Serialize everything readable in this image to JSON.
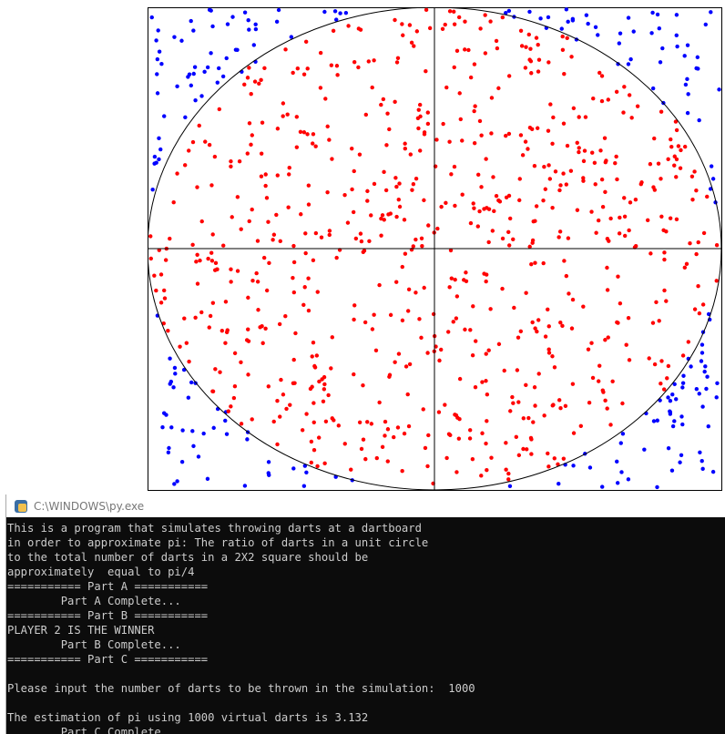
{
  "console": {
    "title": "C:\\WINDOWS\\py.exe",
    "lines": [
      "This is a program that simulates throwing darts at a dartboard",
      "in order to approximate pi: The ratio of darts in a unit circle",
      "to the total number of darts in a 2X2 square should be",
      "approximately  equal to pi/4",
      "=========== Part A ===========",
      "        Part A Complete...",
      "=========== Part B ===========",
      "PLAYER 2 IS THE WINNER",
      "        Part B Complete...",
      "=========== Part C ===========",
      "Please input the number of darts to be thrown in the simulation:  1000",
      "The estimation of pi using 1000 virtual darts is 3.132",
      "        Part C Complete..."
    ]
  }
}
